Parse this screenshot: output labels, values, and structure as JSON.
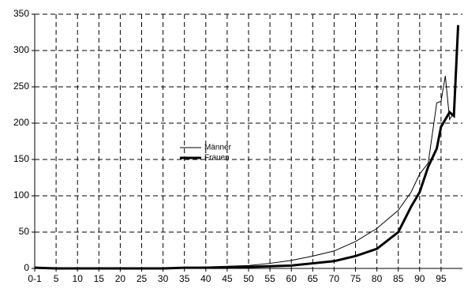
{
  "chart_data": {
    "type": "line",
    "series": [
      {
        "name": "Männer",
        "color": "#000000",
        "x": [
          0,
          5,
          10,
          15,
          20,
          25,
          30,
          35,
          40,
          45,
          50,
          55,
          60,
          65,
          70,
          75,
          80,
          85,
          88,
          90,
          92,
          94,
          95,
          96,
          97,
          98
        ],
        "values": [
          2,
          0,
          0,
          1,
          1,
          1,
          1,
          1,
          2,
          3,
          4,
          7,
          11,
          17,
          24,
          37,
          55,
          80,
          105,
          130,
          145,
          228,
          230,
          265,
          205,
          215
        ]
      },
      {
        "name": "Frauen",
        "color": "#000000",
        "x": [
          0,
          5,
          10,
          15,
          20,
          25,
          30,
          35,
          40,
          45,
          50,
          55,
          60,
          65,
          70,
          75,
          80,
          85,
          88,
          90,
          92,
          94,
          95,
          96,
          97,
          98,
          99
        ],
        "values": [
          1,
          0,
          0,
          0,
          0,
          0,
          0,
          1,
          1,
          1,
          2,
          3,
          4,
          7,
          10,
          17,
          27,
          50,
          85,
          105,
          140,
          165,
          195,
          205,
          215,
          210,
          335
        ]
      }
    ],
    "xlim": [
      0,
      100
    ],
    "xticks": [
      {
        "value": 0,
        "label": "0-1"
      },
      5,
      10,
      15,
      20,
      25,
      30,
      35,
      40,
      45,
      50,
      55,
      60,
      65,
      70,
      75,
      80,
      85,
      90,
      95
    ],
    "ylim": [
      0,
      350
    ],
    "yticks": [
      0,
      50,
      100,
      150,
      200,
      250,
      300,
      350
    ],
    "grid": true
  }
}
